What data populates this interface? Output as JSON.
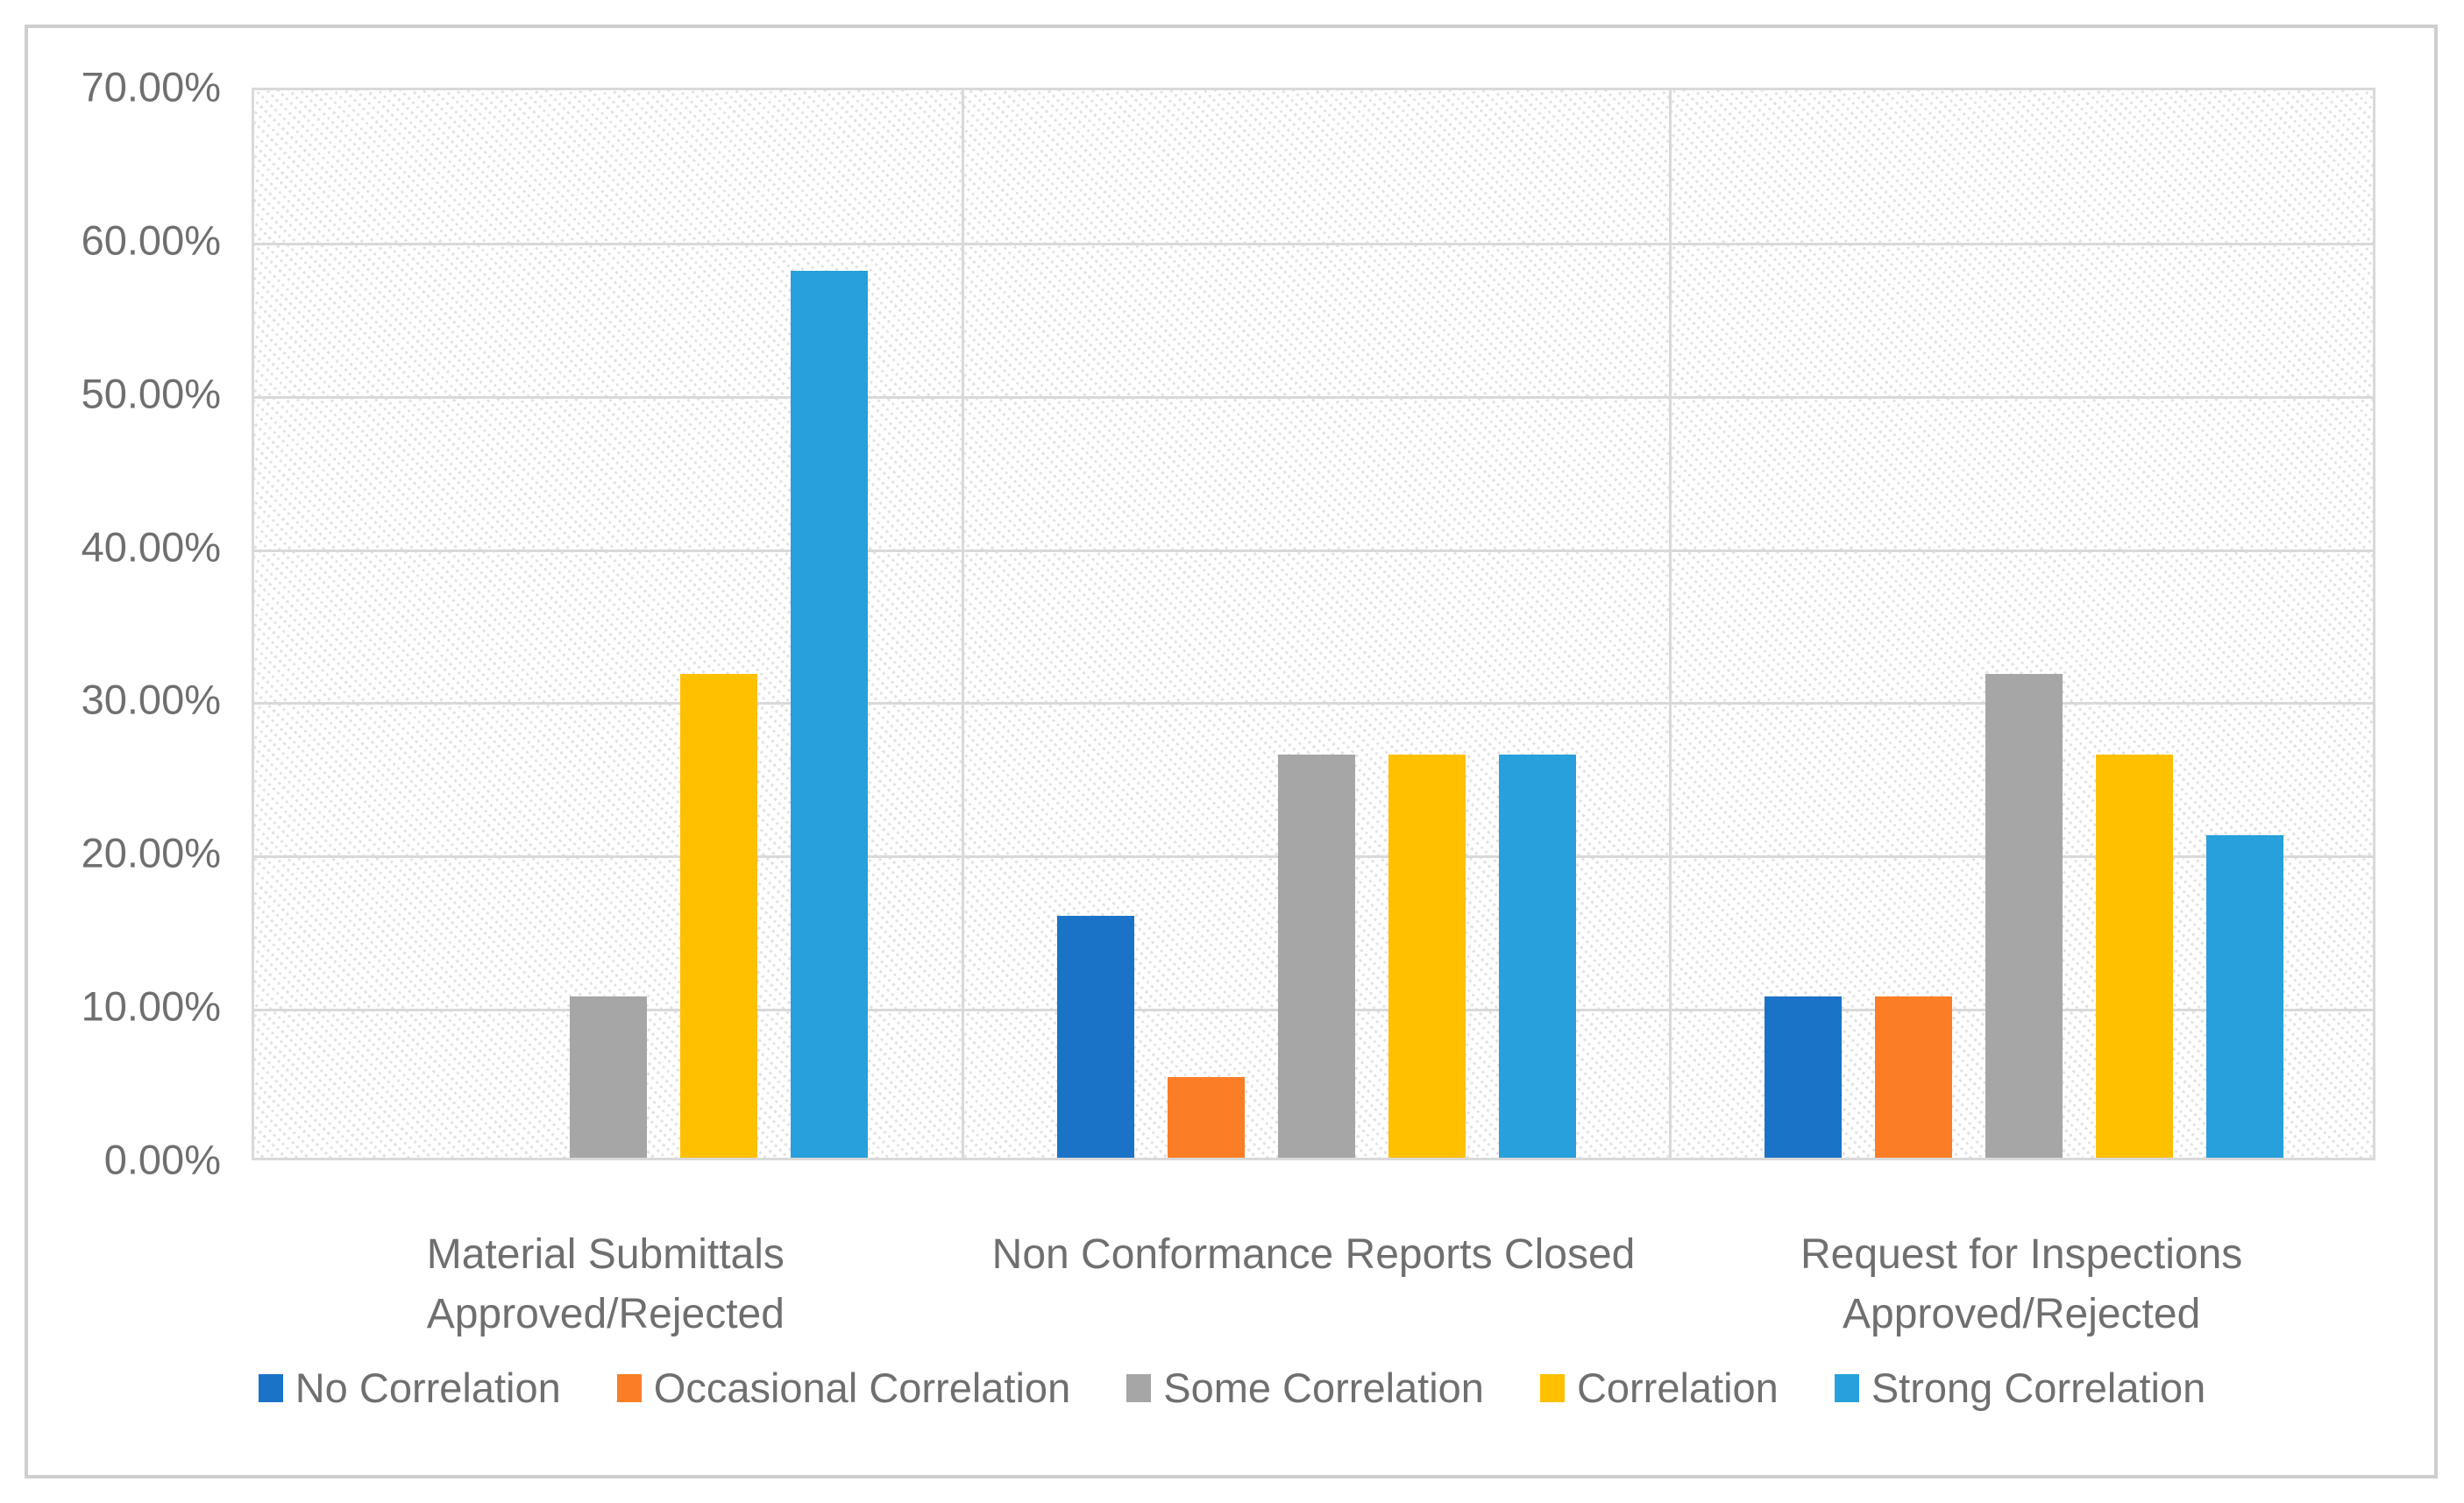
{
  "chart_data": {
    "type": "bar",
    "title": "",
    "xlabel": "",
    "ylabel": "",
    "categories": [
      "Material Submittals Approved/Rejected",
      "Non Conformance Reports Closed",
      "Request for Inspections Approved/Rejected"
    ],
    "category_display": [
      [
        "Material Submittals",
        "Approved/Rejected"
      ],
      [
        "Non Conformance Reports Closed"
      ],
      [
        "Request for Inspections",
        "Approved/Rejected"
      ]
    ],
    "series": [
      {
        "name": "No Correlation",
        "color": "#1b73c8",
        "values": [
          0,
          15.79,
          10.53
        ]
      },
      {
        "name": "Occasional Correlation",
        "color": "#fb7d25",
        "values": [
          0,
          5.26,
          10.53
        ]
      },
      {
        "name": "Some Correlation",
        "color": "#a6a6a6",
        "values": [
          10.53,
          26.32,
          31.58
        ]
      },
      {
        "name": "Correlation",
        "color": "#ffc000",
        "values": [
          31.58,
          26.32,
          26.32
        ]
      },
      {
        "name": "Strong Correlation",
        "color": "#27a0db",
        "values": [
          57.89,
          26.32,
          21.05
        ]
      }
    ],
    "ylim": [
      0,
      70
    ],
    "ytick_step": 10,
    "ytick_labels": [
      "70.00%",
      "60.00%",
      "50.00%",
      "40.00%",
      "30.00%",
      "20.00%",
      "10.00%",
      "0.00%"
    ],
    "value_format": "percent",
    "grid": true,
    "plot_background_pattern": "light-diagonal-hatch",
    "legend_position": "bottom",
    "colors": {
      "gridline": "#d9d9d9",
      "plot_border": "#d9d9d9",
      "outer_border": "#cecece",
      "axis_text": "#6f6f6f"
    }
  }
}
